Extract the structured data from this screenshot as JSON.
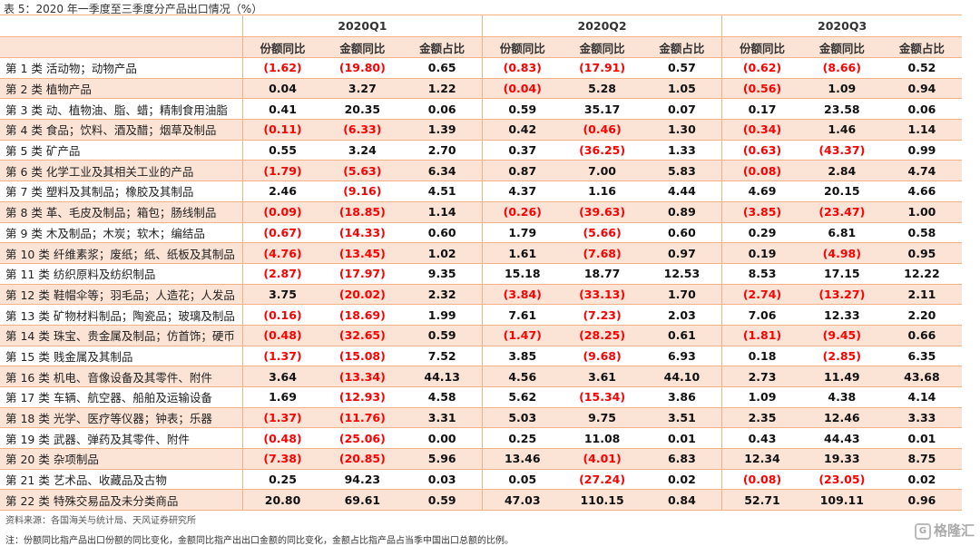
{
  "title": "表 5：2020 年一季度至三季度分产品出口情况（%）",
  "quarters": [
    "2020Q1",
    "2020Q2",
    "2020Q3"
  ],
  "subheaders": [
    "份额同比",
    "金额同比",
    "金额占比"
  ],
  "rows": [
    {
      "label": "第 1 类  活动物；动物产品",
      "values": [
        "(1.62)",
        "(19.80)",
        "0.65",
        "(0.83)",
        "(17.91)",
        "0.57",
        "(0.62)",
        "(8.66)",
        "0.52"
      ]
    },
    {
      "label": "第 2 类  植物产品",
      "values": [
        "0.04",
        "3.27",
        "1.22",
        "(0.04)",
        "5.28",
        "1.05",
        "(0.56)",
        "1.09",
        "0.94"
      ]
    },
    {
      "label": "第 3 类  动、植物油、脂、蜡；精制食用油脂",
      "values": [
        "0.41",
        "20.35",
        "0.06",
        "0.59",
        "35.17",
        "0.07",
        "0.17",
        "23.58",
        "0.06"
      ]
    },
    {
      "label": "第 4 类  食品；饮料、酒及醋；烟草及制品",
      "values": [
        "(0.11)",
        "(6.33)",
        "1.39",
        "0.42",
        "(0.46)",
        "1.30",
        "(0.34)",
        "1.46",
        "1.14"
      ]
    },
    {
      "label": "第 5 类  矿产品",
      "values": [
        "0.55",
        "3.24",
        "2.70",
        "0.37",
        "(36.25)",
        "1.33",
        "(0.63)",
        "(43.37)",
        "0.99"
      ]
    },
    {
      "label": "第 6 类  化学工业及其相关工业的产品",
      "values": [
        "(1.79)",
        "(5.63)",
        "6.34",
        "0.87",
        "7.00",
        "5.83",
        "(0.08)",
        "2.84",
        "4.74"
      ]
    },
    {
      "label": "第 7 类  塑料及其制品；橡胶及其制品",
      "values": [
        "2.46",
        "(9.16)",
        "4.51",
        "4.37",
        "1.16",
        "4.44",
        "4.69",
        "20.15",
        "4.66"
      ]
    },
    {
      "label": "第 8 类  革、毛皮及制品；箱包；肠线制品",
      "values": [
        "(0.09)",
        "(18.85)",
        "1.14",
        "(0.26)",
        "(39.63)",
        "0.89",
        "(3.85)",
        "(23.47)",
        "1.00"
      ]
    },
    {
      "label": "第 9 类  木及制品；木炭；软木；编结品",
      "values": [
        "(0.67)",
        "(14.33)",
        "0.60",
        "1.79",
        "(5.66)",
        "0.60",
        "0.29",
        "6.81",
        "0.58"
      ]
    },
    {
      "label": "第 10 类  纤维素浆；废纸；纸、纸板及其制品",
      "values": [
        "(4.76)",
        "(13.45)",
        "1.02",
        "1.61",
        "(7.68)",
        "0.97",
        "0.19",
        "(4.98)",
        "0.95"
      ]
    },
    {
      "label": "第 11 类  纺织原料及纺织制品",
      "values": [
        "(2.87)",
        "(17.97)",
        "9.35",
        "15.18",
        "18.77",
        "12.53",
        "8.53",
        "17.15",
        "12.22"
      ]
    },
    {
      "label": "第 12 类  鞋帽伞等；羽毛品；人造花；人发品",
      "values": [
        "3.75",
        "(20.02)",
        "2.32",
        "(3.84)",
        "(33.13)",
        "1.70",
        "(2.74)",
        "(13.27)",
        "2.11"
      ]
    },
    {
      "label": "第 13 类  矿物材料制品；陶瓷品；玻璃及制品",
      "values": [
        "(0.16)",
        "(18.69)",
        "1.99",
        "7.61",
        "(7.23)",
        "2.03",
        "7.06",
        "12.33",
        "2.20"
      ]
    },
    {
      "label": "第 14 类  珠宝、贵金属及制品；仿首饰；硬币",
      "values": [
        "(0.48)",
        "(32.65)",
        "0.59",
        "(1.47)",
        "(28.25)",
        "0.61",
        "(1.81)",
        "(9.45)",
        "0.66"
      ]
    },
    {
      "label": "第 15 类  贱金属及其制品",
      "values": [
        "(1.37)",
        "(15.08)",
        "7.52",
        "3.85",
        "(9.68)",
        "6.93",
        "0.18",
        "(2.85)",
        "6.35"
      ]
    },
    {
      "label": "第 16 类  机电、音像设备及其零件、附件",
      "values": [
        "3.64",
        "(13.34)",
        "44.13",
        "4.56",
        "3.61",
        "44.10",
        "2.73",
        "11.49",
        "43.68"
      ]
    },
    {
      "label": "第 17 类  车辆、航空器、船舶及运输设备",
      "values": [
        "1.69",
        "(12.93)",
        "4.58",
        "5.62",
        "(15.34)",
        "3.86",
        "1.09",
        "4.38",
        "4.14"
      ]
    },
    {
      "label": "第 18 类  光学、医疗等仪器；钟表；乐器",
      "values": [
        "(1.37)",
        "(11.76)",
        "3.31",
        "5.03",
        "9.75",
        "3.51",
        "2.35",
        "12.46",
        "3.33"
      ]
    },
    {
      "label": "第 19 类  武器、弹药及其零件、附件",
      "values": [
        "(0.48)",
        "(25.06)",
        "0.00",
        "0.25",
        "11.08",
        "0.01",
        "0.43",
        "44.43",
        "0.01"
      ]
    },
    {
      "label": "第 20 类  杂项制品",
      "values": [
        "(7.38)",
        "(20.85)",
        "5.96",
        "13.46",
        "(4.01)",
        "6.83",
        "12.34",
        "19.33",
        "8.75"
      ]
    },
    {
      "label": "第 21 类  艺术品、收藏品及古物",
      "values": [
        "0.25",
        "94.23",
        "0.03",
        "0.05",
        "(27.24)",
        "0.02",
        "(0.08)",
        "(23.05)",
        "0.02"
      ]
    },
    {
      "label": "第 22 类  特殊交易品及未分类商品",
      "values": [
        "20.80",
        "69.61",
        "0.59",
        "47.03",
        "110.15",
        "0.84",
        "52.71",
        "109.11",
        "0.96"
      ]
    }
  ],
  "source": "资料来源：各国海关与统计局、天风证券研究所",
  "note": "注：份额同比指产品出口份额的同比变化，金额同比指产出出口金额的同比变化，金额占比指产品占当季中国出口总额的比例。",
  "logo": "格隆汇",
  "colors": {
    "negative": "#ff0000",
    "band": "#fbe3d6",
    "border": "#f4b183"
  }
}
